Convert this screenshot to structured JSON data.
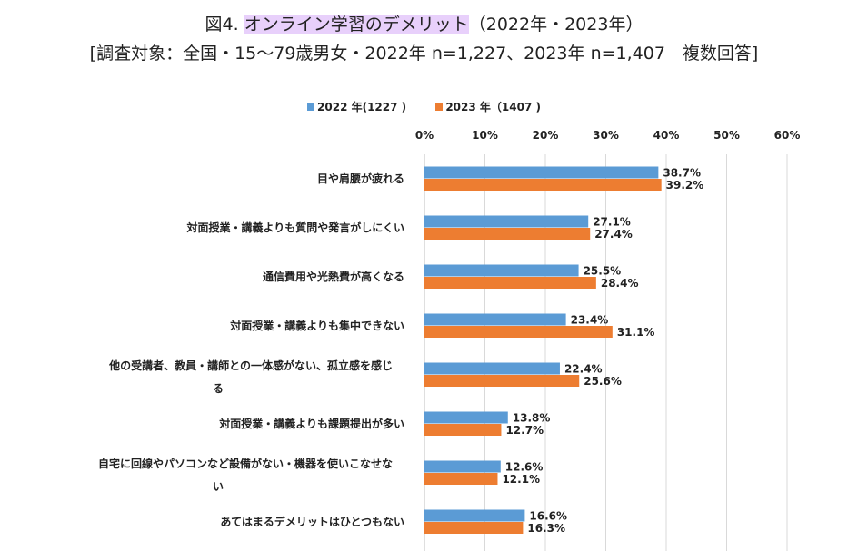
{
  "chart_data": {
    "type": "bar",
    "orientation": "horizontal",
    "title_prefix": "図4.",
    "title_highlight": "オンライン学習のデメリット",
    "title_suffix": "（2022年・2023年）",
    "subtitle": "[調査対象：全国・15～79歳男女・2022年 n=1,227、2023年 n=1,407　複数回答]",
    "categories": [
      "目や肩腰が疲れる",
      "対面授業・講義よりも質問や発言がしにくい",
      "通信費用や光熱費が高くなる",
      "対面授業・講義よりも集中できない",
      "他の受講者、教員・講師との一体感がない、孤立感を感じる",
      "対面授業・講義よりも課題提出が多い",
      "自宅に回線やパソコンなど設備がない・機器を使いこなせない",
      "あてはまるデメリットはひとつもない"
    ],
    "series": [
      {
        "name": "2022 年(1227 )",
        "color": "#5b9bd5",
        "values": [
          38.7,
          27.1,
          25.5,
          23.4,
          22.4,
          13.8,
          12.6,
          16.6
        ]
      },
      {
        "name": "2023 年（1407 )",
        "color": "#ed7d31",
        "values": [
          39.2,
          27.4,
          28.4,
          31.1,
          25.6,
          12.7,
          12.1,
          16.3
        ]
      }
    ],
    "xlim": [
      0,
      60
    ],
    "xticks": [
      "0%",
      "10%",
      "20%",
      "30%",
      "40%",
      "50%",
      "60%"
    ],
    "x_axis_position": "top",
    "legend_position": "top",
    "grid": true
  }
}
